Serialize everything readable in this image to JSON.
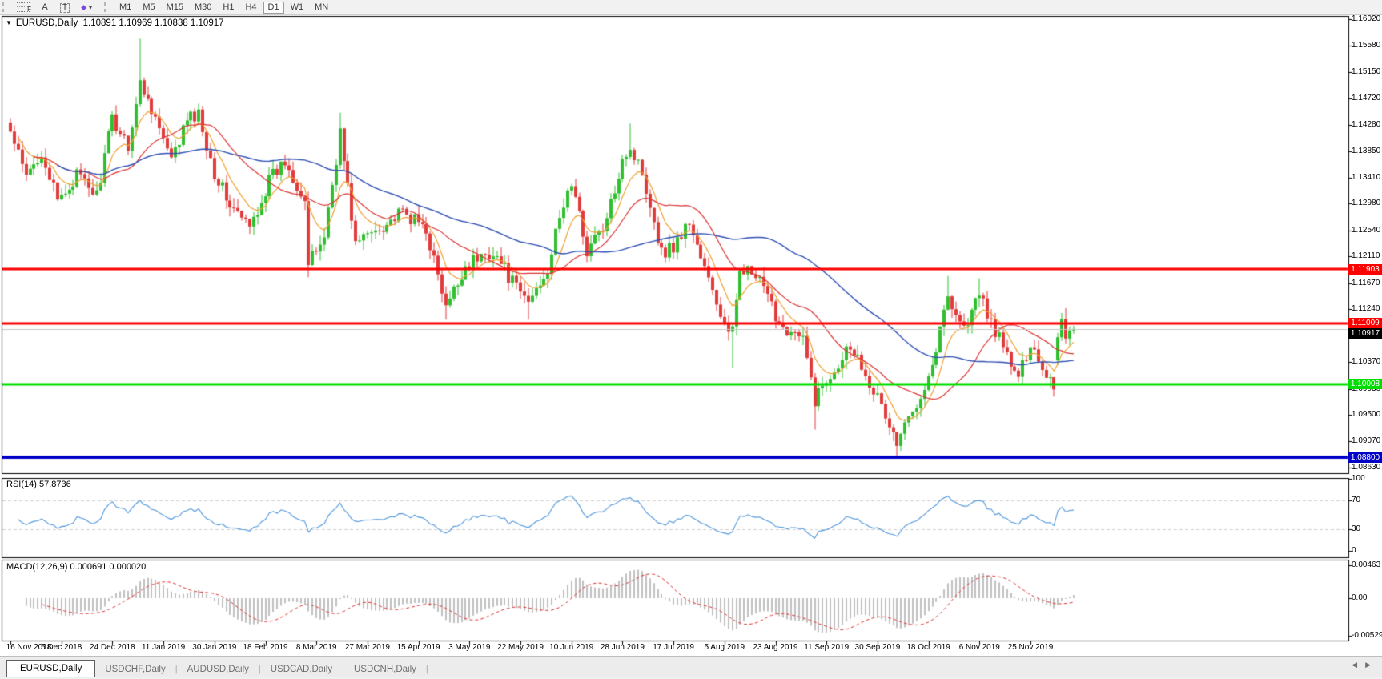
{
  "toolbar": {
    "tools": [
      {
        "name": "fibonacci-retracement",
        "label": "F"
      },
      {
        "name": "text",
        "label": "A"
      },
      {
        "name": "text-label",
        "label": "T"
      },
      {
        "name": "arrows",
        "label": "◆"
      }
    ],
    "arrows_caret": "▾",
    "timeframes": [
      "M1",
      "M5",
      "M15",
      "M30",
      "H1",
      "H4",
      "D1",
      "W1",
      "MN"
    ],
    "active_timeframe": "D1"
  },
  "chart": {
    "menu_arrow": "▼",
    "symbol_label": "EURUSD,Daily",
    "ohlc_label": "1.10891 1.10969 1.10838 1.10917"
  },
  "chart_data": {
    "type": "candlestick",
    "symbol": "EURUSD",
    "timeframe": "Daily",
    "bars": 272,
    "ohlc_current": {
      "open": 1.10891,
      "high": 1.10969,
      "low": 1.10838,
      "close": 1.10917
    },
    "candle_up_color": "#2fbf2f",
    "candle_down_color": "#e13b3b",
    "y_axis": {
      "ticks": [
        "1.16020",
        "1.15580",
        "1.15150",
        "1.14720",
        "1.14280",
        "1.13850",
        "1.13410",
        "1.12980",
        "1.12540",
        "1.12110",
        "1.11670",
        "1.11240",
        "1.10800",
        "1.10370",
        "1.09930",
        "1.09500",
        "1.09070",
        "1.08630"
      ],
      "top_price": 1.1602,
      "bottom_price": 1.0863
    },
    "x_dates": [
      "16 Nov 2018",
      "5 Dec 2018",
      "24 Dec 2018",
      "11 Jan 2019",
      "30 Jan 2019",
      "18 Feb 2019",
      "8 Mar 2019",
      "27 Mar 2019",
      "15 Apr 2019",
      "3 May 2019",
      "22 May 2019",
      "10 Jun 2019",
      "28 Jun 2019",
      "17 Jul 2019",
      "5 Aug 2019",
      "23 Aug 2019",
      "11 Sep 2019",
      "30 Sep 2019",
      "18 Oct 2019",
      "6 Nov 2019",
      "25 Nov 2019"
    ],
    "anchors": [
      [
        0,
        1.1415
      ],
      [
        4,
        1.134
      ],
      [
        8,
        1.1385
      ],
      [
        12,
        1.13
      ],
      [
        17,
        1.1345
      ],
      [
        22,
        1.1312
      ],
      [
        26,
        1.1438
      ],
      [
        30,
        1.1396
      ],
      [
        33,
        1.1495
      ],
      [
        36,
        1.1458
      ],
      [
        41,
        1.1366
      ],
      [
        45,
        1.1437
      ],
      [
        48,
        1.1445
      ],
      [
        52,
        1.135
      ],
      [
        56,
        1.1296
      ],
      [
        61,
        1.1258
      ],
      [
        66,
        1.1336
      ],
      [
        70,
        1.1368
      ],
      [
        75,
        1.1306
      ],
      [
        76,
        1.1196
      ],
      [
        80,
        1.1246
      ],
      [
        84,
        1.1416
      ],
      [
        88,
        1.1232
      ],
      [
        93,
        1.1256
      ],
      [
        100,
        1.1282
      ],
      [
        106,
        1.1258
      ],
      [
        111,
        1.1124
      ],
      [
        116,
        1.1196
      ],
      [
        123,
        1.1221
      ],
      [
        129,
        1.1158
      ],
      [
        132,
        1.1136
      ],
      [
        137,
        1.1192
      ],
      [
        141,
        1.1298
      ],
      [
        143,
        1.1332
      ],
      [
        147,
        1.1222
      ],
      [
        152,
        1.1268
      ],
      [
        156,
        1.1378
      ],
      [
        158,
        1.1388
      ],
      [
        161,
        1.1352
      ],
      [
        166,
        1.1218
      ],
      [
        169,
        1.1228
      ],
      [
        173,
        1.1268
      ],
      [
        179,
        1.1152
      ],
      [
        183,
        1.108
      ],
      [
        184,
        1.1086
      ],
      [
        186,
        1.1198
      ],
      [
        191,
        1.1168
      ],
      [
        196,
        1.1102
      ],
      [
        202,
        1.1072
      ],
      [
        205,
        1.0976
      ],
      [
        210,
        1.1028
      ],
      [
        214,
        1.1068
      ],
      [
        218,
        1.1022
      ],
      [
        223,
        1.0948
      ],
      [
        226,
        1.0902
      ],
      [
        230,
        1.0958
      ],
      [
        235,
        1.1032
      ],
      [
        239,
        1.1148
      ],
      [
        243,
        1.1092
      ],
      [
        247,
        1.1148
      ],
      [
        251,
        1.1088
      ],
      [
        254,
        1.1048
      ],
      [
        257,
        1.1008
      ],
      [
        260,
        1.1072
      ],
      [
        263,
        1.1028
      ],
      [
        266,
        1.1
      ],
      [
        268,
        1.0994
      ],
      [
        270,
        1.105
      ],
      [
        271,
        1.1092
      ]
    ],
    "spikes": {
      "33": {
        "h": 1.157
      },
      "76": {
        "l": 1.1177
      },
      "84": {
        "h": 1.1448
      },
      "111": {
        "l": 1.1107
      },
      "132": {
        "l": 1.1107
      },
      "158": {
        "h": 1.143
      },
      "184": {
        "l": 1.1027
      },
      "205": {
        "l": 1.0926
      },
      "226": {
        "l": 1.0879
      },
      "239": {
        "h": 1.1179
      },
      "247": {
        "h": 1.1175
      },
      "268": {
        "l": 1.0981
      }
    },
    "last_candles": [
      {
        "o": 1.104,
        "h": 1.1085,
        "l": 1.1032,
        "c": 1.1078
      },
      {
        "o": 1.1078,
        "h": 1.1118,
        "l": 1.1072,
        "c": 1.1108
      },
      {
        "o": 1.1108,
        "h": 1.1126,
        "l": 1.1068,
        "c": 1.1076
      },
      {
        "o": 1.1076,
        "h": 1.1096,
        "l": 1.1065,
        "c": 1.1089
      },
      {
        "o": 1.10891,
        "h": 1.10969,
        "l": 1.10838,
        "c": 1.10917
      }
    ],
    "moving_averages": [
      {
        "name": "fast",
        "type": "ema",
        "period": 8,
        "color": "#f0a030"
      },
      {
        "name": "medium",
        "type": "sma",
        "period": 21,
        "color": "#dd3333"
      },
      {
        "name": "slow",
        "type": "sma",
        "period": 55,
        "color": "#3050b4"
      }
    ],
    "hlines": [
      {
        "label": "1.11903",
        "price": 1.11903,
        "color": "#ff0000",
        "width": 3
      },
      {
        "label": "1.11009",
        "price": 1.11009,
        "color": "#ff0000",
        "width": 3
      },
      {
        "label": "1.10008",
        "price": 1.10008,
        "color": "#00dd00",
        "width": 3
      },
      {
        "label": "1.08800",
        "price": 1.088,
        "color": "#0000c8",
        "width": 4
      }
    ],
    "current_price": {
      "label": "1.10917",
      "price": 1.10917,
      "badge_color": "#000000",
      "line_color": "#c8c8c8"
    },
    "indicators": {
      "rsi": {
        "label": "RSI(14) 57.8736",
        "period": 14,
        "current": 57.8736,
        "levels": [
          70,
          30
        ],
        "scale": [
          0,
          100
        ],
        "ticks": [
          "100",
          "70",
          "30",
          "0"
        ],
        "color": "#4f97dd"
      },
      "macd": {
        "label": "MACD(12,26,9) 0.000691 0.000020",
        "fast": 12,
        "slow": 26,
        "signal": 9,
        "current_macd": 0.000691,
        "current_signal": 2e-05,
        "ticks": [
          "0.00463",
          "0.00",
          "-0.005299"
        ],
        "scale_top": 0.00463,
        "scale_bottom": -0.005299,
        "histogram_color": "#b2b2b2",
        "signal_color": "#e03333"
      }
    }
  },
  "tabs": [
    "EURUSD,Daily",
    "USDCHF,Daily",
    "AUDUSD,Daily",
    "USDCAD,Daily",
    "USDCNH,Daily"
  ],
  "tabs_ui": {
    "separator": "|"
  },
  "tab_nav": {
    "left": "◀",
    "right": "▶"
  }
}
